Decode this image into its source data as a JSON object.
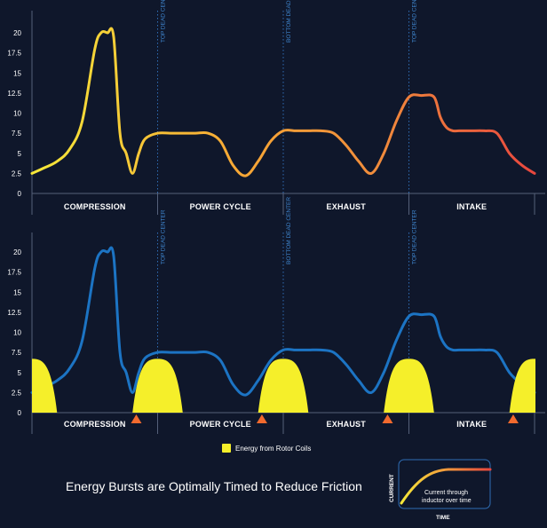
{
  "chart_data": [
    {
      "type": "line",
      "title": "",
      "ylim": [
        0,
        22
      ],
      "yticks": [
        "0",
        "2.5",
        "5",
        "7.5",
        "10",
        "12.5",
        "15",
        "17.5",
        "20"
      ],
      "phases": [
        "COMPRESSION",
        "POWER CYCLE",
        "EXHAUST",
        "INTAKE"
      ],
      "markers": [
        "TOP DEAD CENTER",
        "BOTTOM DEAD CENTER",
        "TOP DEAD CENTER"
      ],
      "series": [
        {
          "x": [
            0,
            0.1,
            0.2,
            0.3,
            0.4,
            0.5,
            0.55,
            0.6,
            0.65,
            0.7,
            0.75,
            0.8,
            0.85,
            0.9,
            1.0,
            1.1,
            1.2,
            1.3,
            1.4,
            1.5,
            1.6,
            1.7,
            1.8,
            1.9,
            2.0,
            2.1,
            2.2,
            2.3,
            2.4,
            2.5,
            2.6,
            2.7,
            2.8,
            2.9,
            3.0,
            3.1,
            3.2,
            3.25,
            3.3,
            3.35,
            3.4,
            3.45,
            3.5,
            3.6,
            3.7,
            3.8,
            3.9,
            4.0
          ],
          "y": [
            2.5,
            3.2,
            4.0,
            5.5,
            9.0,
            18.0,
            20.0,
            20.0,
            19.5,
            7.5,
            5.0,
            2.5,
            5.0,
            6.8,
            7.5,
            7.5,
            7.5,
            7.5,
            7.5,
            6.5,
            3.5,
            2.2,
            4.0,
            6.5,
            7.8,
            7.8,
            7.8,
            7.8,
            7.5,
            6.0,
            4.0,
            2.5,
            5.0,
            9.0,
            12.0,
            12.2,
            12.0,
            9.5,
            8.2,
            7.8,
            7.8,
            7.8,
            7.8,
            7.8,
            7.5,
            5.0,
            3.5,
            2.5
          ],
          "gradient": [
            "#f6e839",
            "#f7a935",
            "#f08a3c",
            "#e8473e"
          ]
        }
      ]
    },
    {
      "type": "line",
      "title": "",
      "ylim": [
        0,
        22
      ],
      "yticks": [
        "0",
        "2.5",
        "5",
        "7.5",
        "10",
        "12.5",
        "15",
        "17.5",
        "20"
      ],
      "phases": [
        "COMPRESSION",
        "POWER CYCLE",
        "EXHAUST",
        "INTAKE"
      ],
      "markers": [
        "TOP DEAD CENTER",
        "BOTTOM DEAD CENTER",
        "TOP DEAD CENTER"
      ],
      "series": [
        {
          "name": "Energy from Rotor Coils",
          "color": "#f5ef2a",
          "bursts": [
            {
              "center": 0.0,
              "halfwidth": 0.2,
              "height": 6.7
            },
            {
              "center": 1.0,
              "halfwidth": 0.2,
              "height": 6.7
            },
            {
              "center": 2.0,
              "halfwidth": 0.2,
              "height": 6.7
            },
            {
              "center": 3.0,
              "halfwidth": 0.2,
              "height": 6.7
            },
            {
              "center": 4.0,
              "halfwidth": 0.2,
              "height": 6.7
            }
          ]
        },
        {
          "color": "#1c74c4",
          "x": [
            0,
            0.1,
            0.2,
            0.3,
            0.4,
            0.5,
            0.55,
            0.6,
            0.65,
            0.7,
            0.75,
            0.8,
            0.85,
            0.9,
            1.0,
            1.1,
            1.2,
            1.3,
            1.4,
            1.5,
            1.6,
            1.7,
            1.8,
            1.9,
            2.0,
            2.1,
            2.2,
            2.3,
            2.4,
            2.5,
            2.6,
            2.7,
            2.8,
            2.9,
            3.0,
            3.1,
            3.2,
            3.25,
            3.3,
            3.35,
            3.4,
            3.45,
            3.5,
            3.6,
            3.7,
            3.8,
            3.9,
            4.0
          ],
          "y": [
            2.5,
            3.2,
            4.0,
            5.5,
            9.0,
            18.0,
            20.0,
            20.0,
            19.5,
            7.5,
            5.0,
            2.5,
            5.0,
            6.8,
            7.5,
            7.5,
            7.5,
            7.5,
            7.5,
            6.5,
            3.5,
            2.2,
            4.0,
            6.5,
            7.8,
            7.8,
            7.8,
            7.8,
            7.5,
            6.0,
            4.0,
            2.5,
            5.0,
            9.0,
            12.0,
            12.2,
            12.0,
            9.5,
            8.2,
            7.8,
            7.8,
            7.8,
            7.8,
            7.8,
            7.5,
            5.0,
            3.5,
            2.5
          ]
        }
      ],
      "triangle_markers_at": [
        0.83,
        1.83,
        2.83,
        3.83
      ],
      "triangle_color": "#f26a2e"
    }
  ],
  "legend": {
    "label": "Energy from Rotor Coils",
    "swatch_color": "#f5ef2a"
  },
  "headline": "Energy Bursts are Optimally Timed to Reduce Friction",
  "inset": {
    "y_label": "CURRENT",
    "x_label": "TIME",
    "caption_line1": "Current through",
    "caption_line2": "inductor over time",
    "border_color": "#2f6db5",
    "curve_gradient": [
      "#f6e839",
      "#e8473e"
    ]
  },
  "colors": {
    "background": "#0f172b",
    "marker_line": "#2f6db5",
    "axis": "#55607a"
  }
}
